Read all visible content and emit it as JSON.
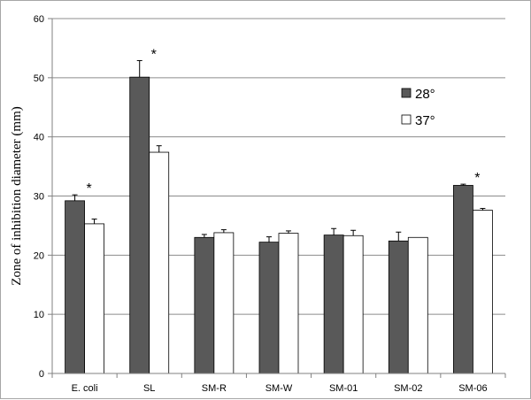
{
  "chart_data": {
    "type": "bar",
    "title": "",
    "xlabel": "",
    "ylabel": "Zone of inhibition diameter (mm)",
    "ylim": [
      0,
      60
    ],
    "yticks": [
      0,
      10,
      20,
      30,
      40,
      50,
      60
    ],
    "grid": true,
    "legend_position": "top-right",
    "categories": [
      "E. coli",
      "SL",
      "SM-R",
      "SM-W",
      "SM-01",
      "SM-02",
      "SM-06"
    ],
    "series": [
      {
        "name": "28°",
        "color": "#595959",
        "values": [
          29.2,
          50.1,
          23.0,
          22.2,
          23.4,
          22.4,
          31.8
        ],
        "errors": [
          1.0,
          2.8,
          0.5,
          0.9,
          1.1,
          1.5,
          0.2
        ]
      },
      {
        "name": "37°",
        "color": "#ffffff",
        "values": [
          25.3,
          37.4,
          23.8,
          23.7,
          23.3,
          23.0,
          27.6
        ],
        "errors": [
          0.8,
          1.1,
          0.5,
          0.4,
          0.9,
          0.0,
          0.3
        ]
      }
    ],
    "annotations": [
      {
        "category": "E. coli",
        "text": "*"
      },
      {
        "category": "SL",
        "text": "*"
      },
      {
        "category": "SM-06",
        "text": "*"
      }
    ]
  }
}
